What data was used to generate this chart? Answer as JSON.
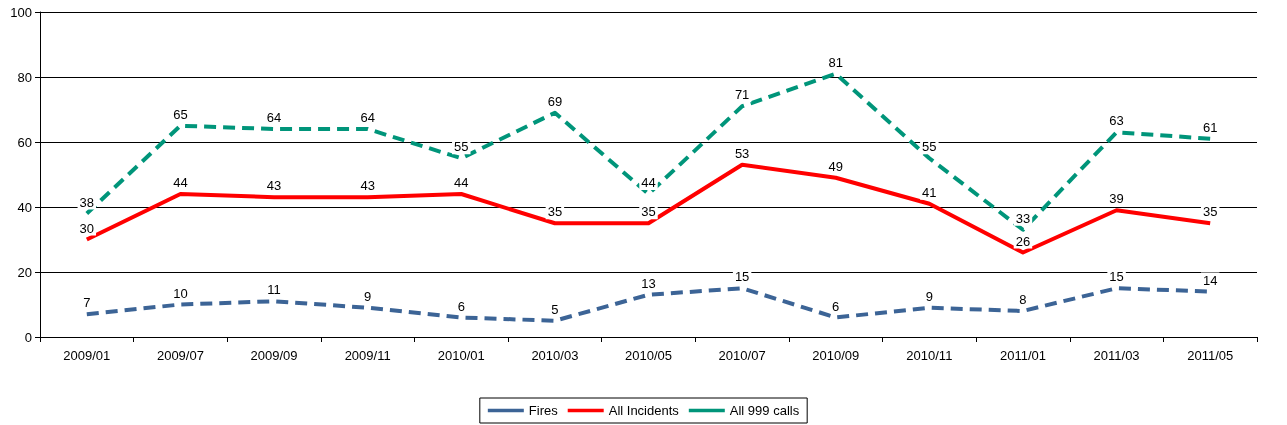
{
  "chart_data": {
    "type": "line",
    "categories": [
      "2009/01",
      "2009/07",
      "2009/09",
      "2009/11",
      "2010/01",
      "2010/03",
      "2010/05",
      "2010/07",
      "2010/09",
      "2010/11",
      "2011/01",
      "2011/03",
      "2011/05"
    ],
    "series": [
      {
        "name": "Fires",
        "color": "#3c6496",
        "line_style": "dashed",
        "values": [
          7,
          10,
          11,
          9,
          6,
          5,
          13,
          15,
          6,
          9,
          8,
          15,
          14
        ]
      },
      {
        "name": "All Incidents",
        "color": "#ff0000",
        "line_style": "solid",
        "values": [
          30,
          44,
          43,
          43,
          44,
          35,
          35,
          53,
          49,
          41,
          26,
          39,
          35
        ]
      },
      {
        "name": "All 999 calls",
        "color": "#00957a",
        "line_style": "dashed",
        "values": [
          38,
          65,
          64,
          64,
          55,
          69,
          44,
          71,
          81,
          55,
          33,
          63,
          61
        ]
      }
    ],
    "ylim": [
      0,
      100
    ],
    "yticks": [
      0,
      20,
      40,
      60,
      80,
      100
    ],
    "grid": "y",
    "legend": "bottom",
    "data_labels": true,
    "marker": "none"
  }
}
